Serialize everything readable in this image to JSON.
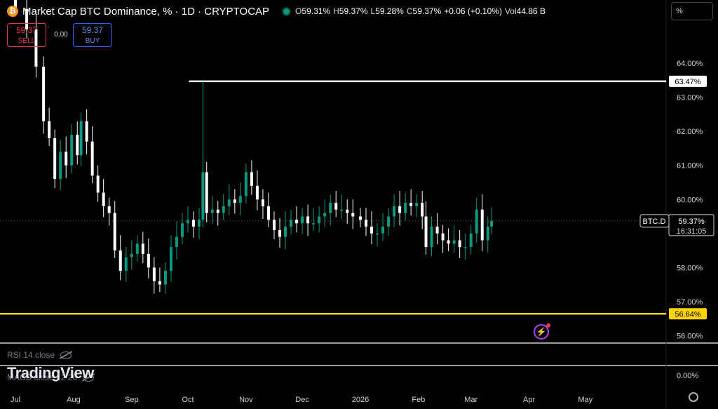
{
  "header": {
    "logo_glyph": "₿",
    "title": "Market Cap BTC Dominance, % · 1D · CRYPTOCAP",
    "ohlc": [
      {
        "k": "O",
        "v": "59.31%"
      },
      {
        "k": "H",
        "v": "59.37%"
      },
      {
        "k": "L",
        "v": "59.28%"
      },
      {
        "k": "C",
        "v": "59.37%"
      },
      {
        "k": "",
        "v": "+0.06 (+0.10%)"
      },
      {
        "k": "Vol",
        "v": "44.86 B"
      }
    ],
    "status_color": "#089981",
    "scale_mode": "%"
  },
  "trade": {
    "sell_price": "59.37",
    "sell_label": "SELL",
    "spread": "0.00",
    "buy_price": "59.37",
    "buy_label": "BUY"
  },
  "indicators": {
    "rsi": "RSI 14 close",
    "macd": "MACD close 12 26"
  },
  "watermark": "TradingView",
  "colors": {
    "up": "#089981",
    "down": "#ffffff",
    "up_fill": "#089981",
    "hline_white": "#ffffff",
    "hline_yellow": "#ffd500",
    "background": "#000000"
  },
  "chart_data": {
    "type": "candlestick",
    "symbol": "BTC.D",
    "last_price": "59.37%",
    "countdown": "16:31:05",
    "y_ticks": [
      "64.00%",
      "63.00%",
      "62.00%",
      "61.00%",
      "60.00%",
      "58.00%",
      "57.00%",
      "56.00%"
    ],
    "y_tick_values": [
      64,
      63,
      62,
      61,
      60,
      58,
      57,
      56
    ],
    "ylim": [
      55.8,
      65.2
    ],
    "macd_tick": "0.00%",
    "x_ticks": [
      "Jul",
      "Aug",
      "Sep",
      "Oct",
      "Nov",
      "Dec",
      "2026",
      "Feb",
      "Mar",
      "Apr",
      "May"
    ],
    "horizontal_lines": [
      {
        "value": 63.47,
        "label": "63.47%",
        "color": "#ffffff"
      },
      {
        "value": 56.64,
        "label": "56.64%",
        "color": "#ffd500"
      }
    ],
    "series": [
      {
        "date": "2025-07-01",
        "close": 65.6
      },
      {
        "date": "2025-07-07",
        "close": 65.0
      },
      {
        "date": "2025-07-12",
        "close": 63.9
      },
      {
        "date": "2025-07-16",
        "close": 62.3
      },
      {
        "date": "2025-07-19",
        "close": 61.8
      },
      {
        "date": "2025-07-22",
        "close": 60.6
      },
      {
        "date": "2025-07-25",
        "close": 61.4
      },
      {
        "date": "2025-07-28",
        "close": 61.0
      },
      {
        "date": "2025-07-31",
        "close": 61.9
      },
      {
        "date": "2025-08-03",
        "close": 61.3
      },
      {
        "date": "2025-08-05",
        "close": 62.3
      },
      {
        "date": "2025-08-08",
        "close": 61.7
      },
      {
        "date": "2025-08-11",
        "close": 60.7
      },
      {
        "date": "2025-08-14",
        "close": 60.2
      },
      {
        "date": "2025-08-17",
        "close": 59.8
      },
      {
        "date": "2025-08-20",
        "close": 59.6
      },
      {
        "date": "2025-08-23",
        "close": 58.5
      },
      {
        "date": "2025-08-26",
        "close": 57.9
      },
      {
        "date": "2025-08-29",
        "close": 58.3
      },
      {
        "date": "2025-09-01",
        "close": 58.4
      },
      {
        "date": "2025-09-04",
        "close": 58.7
      },
      {
        "date": "2025-09-07",
        "close": 58.4
      },
      {
        "date": "2025-09-10",
        "close": 58.0
      },
      {
        "date": "2025-09-13",
        "close": 57.6
      },
      {
        "date": "2025-09-16",
        "close": 57.5
      },
      {
        "date": "2025-09-19",
        "close": 57.9
      },
      {
        "date": "2025-09-22",
        "close": 58.6
      },
      {
        "date": "2025-09-25",
        "close": 58.9
      },
      {
        "date": "2025-09-28",
        "close": 59.3
      },
      {
        "date": "2025-10-01",
        "close": 59.4
      },
      {
        "date": "2025-10-04",
        "close": 59.2
      },
      {
        "date": "2025-10-07",
        "close": 59.4
      },
      {
        "date": "2025-10-09",
        "close": 60.8
      },
      {
        "date": "2025-10-11",
        "close": 59.6
      },
      {
        "date": "2025-10-14",
        "close": 59.7
      },
      {
        "date": "2025-10-17",
        "close": 59.6
      },
      {
        "date": "2025-10-20",
        "close": 59.8
      },
      {
        "date": "2025-10-23",
        "close": 60.0
      },
      {
        "date": "2025-10-26",
        "close": 59.9
      },
      {
        "date": "2025-10-29",
        "close": 60.1
      },
      {
        "date": "2025-11-01",
        "close": 60.8
      },
      {
        "date": "2025-11-04",
        "close": 60.4
      },
      {
        "date": "2025-11-07",
        "close": 60.0
      },
      {
        "date": "2025-11-10",
        "close": 59.8
      },
      {
        "date": "2025-11-13",
        "close": 59.4
      },
      {
        "date": "2025-11-16",
        "close": 59.1
      },
      {
        "date": "2025-11-19",
        "close": 58.9
      },
      {
        "date": "2025-11-22",
        "close": 59.2
      },
      {
        "date": "2025-11-25",
        "close": 59.4
      },
      {
        "date": "2025-11-28",
        "close": 59.3
      },
      {
        "date": "2025-12-01",
        "close": 59.5
      },
      {
        "date": "2025-12-04",
        "close": 59.3
      },
      {
        "date": "2025-12-07",
        "close": 59.3
      },
      {
        "date": "2025-12-10",
        "close": 59.5
      },
      {
        "date": "2025-12-13",
        "close": 59.6
      },
      {
        "date": "2025-12-16",
        "close": 59.9
      },
      {
        "date": "2025-12-19",
        "close": 59.7
      },
      {
        "date": "2025-12-22",
        "close": 59.7
      },
      {
        "date": "2025-12-25",
        "close": 59.6
      },
      {
        "date": "2025-12-28",
        "close": 59.5
      },
      {
        "date": "2026-01-01",
        "close": 59.4
      },
      {
        "date": "2026-01-04",
        "close": 59.2
      },
      {
        "date": "2026-01-07",
        "close": 59.0
      },
      {
        "date": "2026-01-10",
        "close": 59.0
      },
      {
        "date": "2026-01-13",
        "close": 59.2
      },
      {
        "date": "2026-01-16",
        "close": 59.5
      },
      {
        "date": "2026-01-19",
        "close": 59.8
      },
      {
        "date": "2026-01-22",
        "close": 59.6
      },
      {
        "date": "2026-01-25",
        "close": 59.9
      },
      {
        "date": "2026-01-28",
        "close": 59.8
      },
      {
        "date": "2026-01-31",
        "close": 59.9
      },
      {
        "date": "2026-02-03",
        "close": 59.5
      },
      {
        "date": "2026-02-05",
        "close": 58.6
      },
      {
        "date": "2026-02-08",
        "close": 59.2
      },
      {
        "date": "2026-02-11",
        "close": 59.0
      },
      {
        "date": "2026-02-14",
        "close": 58.8
      },
      {
        "date": "2026-02-17",
        "close": 58.7
      },
      {
        "date": "2026-02-20",
        "close": 58.8
      },
      {
        "date": "2026-02-23",
        "close": 58.6
      },
      {
        "date": "2026-02-26",
        "close": 58.6
      },
      {
        "date": "2026-03-01",
        "close": 59.0
      },
      {
        "date": "2026-03-04",
        "close": 59.7
      },
      {
        "date": "2026-03-07",
        "close": 58.8
      },
      {
        "date": "2026-03-10",
        "close": 59.2
      },
      {
        "date": "2026-03-12",
        "close": 59.37
      }
    ]
  }
}
